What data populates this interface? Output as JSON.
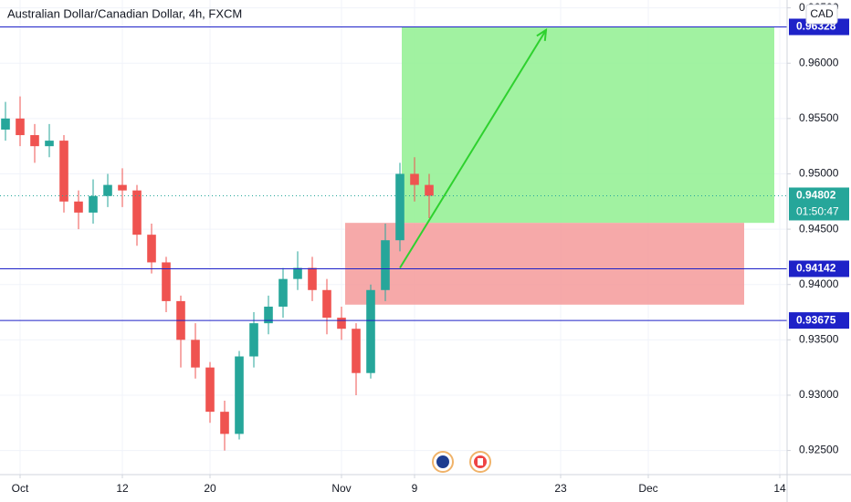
{
  "chart_data": {
    "type": "candlestick",
    "title": "Australian Dollar/Canadian Dollar, 4h, FXCM",
    "currency": "CAD",
    "xlim": [
      -1.375,
      52.5
    ],
    "ylim": [
      0.92282,
      0.96571
    ],
    "xticks": [
      {
        "value": 0,
        "label": "Oct"
      },
      {
        "value": 7,
        "label": "12"
      },
      {
        "value": 13,
        "label": "20"
      },
      {
        "value": 22,
        "label": "Nov"
      },
      {
        "value": 27,
        "label": "9"
      },
      {
        "value": 37,
        "label": "23"
      },
      {
        "value": 43,
        "label": "Dec"
      },
      {
        "value": 52,
        "label": "14"
      }
    ],
    "yticks": [
      {
        "value": 0.925,
        "label": "0.92500"
      },
      {
        "value": 0.93,
        "label": "0.93000"
      },
      {
        "value": 0.935,
        "label": "0.93500"
      },
      {
        "value": 0.94,
        "label": "0.94000"
      },
      {
        "value": 0.945,
        "label": "0.94500"
      },
      {
        "value": 0.95,
        "label": "0.95000"
      },
      {
        "value": 0.955,
        "label": "0.95500"
      },
      {
        "value": 0.96,
        "label": "0.96000"
      },
      {
        "value": 0.965,
        "label": "0.96500"
      }
    ],
    "grid": true,
    "up_color": "#26a69a",
    "down_color": "#ef5350",
    "x": [
      -1,
      0,
      1,
      2,
      3,
      4,
      5,
      6,
      7,
      8,
      9,
      10,
      11,
      12,
      13,
      14,
      15,
      16,
      17,
      18,
      19,
      20,
      21,
      22,
      23,
      24,
      25,
      26,
      27,
      28
    ],
    "open": [
      0.954,
      0.955,
      0.9535,
      0.9525,
      0.953,
      0.9475,
      0.9465,
      0.948,
      0.949,
      0.9485,
      0.9445,
      0.942,
      0.9385,
      0.935,
      0.9325,
      0.9285,
      0.9265,
      0.9335,
      0.9365,
      0.938,
      0.9405,
      0.9415,
      0.9395,
      0.937,
      0.936,
      0.932,
      0.9395,
      0.944,
      0.95,
      0.949
    ],
    "high": [
      0.9565,
      0.957,
      0.9545,
      0.9545,
      0.9535,
      0.9485,
      0.9495,
      0.95,
      0.9505,
      0.949,
      0.9455,
      0.9425,
      0.939,
      0.9365,
      0.933,
      0.9295,
      0.934,
      0.9375,
      0.939,
      0.9415,
      0.943,
      0.9425,
      0.9405,
      0.938,
      0.9365,
      0.94,
      0.9455,
      0.951,
      0.9515,
      0.95
    ],
    "low": [
      0.953,
      0.9525,
      0.951,
      0.9515,
      0.9465,
      0.945,
      0.9455,
      0.947,
      0.947,
      0.9435,
      0.941,
      0.9375,
      0.9325,
      0.9315,
      0.9275,
      0.925,
      0.926,
      0.9325,
      0.9355,
      0.937,
      0.9395,
      0.9385,
      0.9355,
      0.935,
      0.93,
      0.9315,
      0.9385,
      0.943,
      0.9475,
      0.946
    ],
    "close": [
      0.955,
      0.9535,
      0.9525,
      0.953,
      0.9475,
      0.9465,
      0.948,
      0.949,
      0.9485,
      0.9445,
      0.942,
      0.9385,
      0.935,
      0.9325,
      0.9285,
      0.9265,
      0.9335,
      0.9365,
      0.938,
      0.9405,
      0.9415,
      0.9395,
      0.937,
      0.936,
      0.932,
      0.9395,
      0.944,
      0.95,
      0.949,
      0.94802
    ],
    "levels": [
      {
        "value": 0.96328,
        "color": "#1e22c8"
      },
      {
        "value": 0.94142,
        "color": "#1e22c8"
      },
      {
        "value": 0.93675,
        "color": "#1e22c8"
      }
    ],
    "last_price": {
      "value": 0.94802,
      "countdown": "01:50:47",
      "color": "#26a69a"
    },
    "profit_zone": {
      "x": [
        26.125,
        51.625
      ],
      "y": [
        0.94557,
        0.96328
      ],
      "color": "#90f090"
    },
    "loss_zone": {
      "x": [
        22.25,
        49.5625
      ],
      "y": [
        0.93818,
        0.94557
      ],
      "color": "#f49a9a"
    },
    "arrow": {
      "x": [
        26,
        36
      ],
      "y": [
        0.9415,
        0.963
      ],
      "color": "#2ed12e"
    }
  }
}
